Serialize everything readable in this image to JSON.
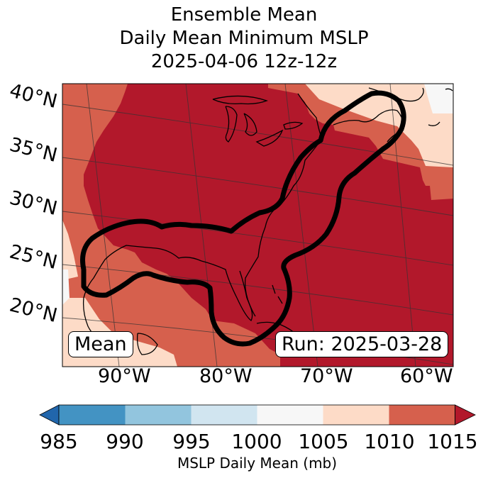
{
  "title": {
    "line1": "Ensemble Mean",
    "line2": "Daily Mean Minimum MSLP",
    "line3": "2025-04-06 12z-12z"
  },
  "map": {
    "latitude_labels": [
      "40°N",
      "35°N",
      "30°N",
      "25°N",
      "20°N"
    ],
    "longitude_labels": [
      "90°W",
      "80°W",
      "70°W",
      "60°W"
    ],
    "mean_label": "Mean",
    "run_label": "Run: 2025-03-28",
    "colors": {
      "lt_985": "#2166ac",
      "985_990": "#4393c3",
      "990_995": "#92c5de",
      "995_1000": "#d1e5f0",
      "1000_1005": "#f7f7f7",
      "1005_1010": "#fddbc7",
      "1010_1015": "#d6604d",
      "gt_1015": "#b2182b"
    }
  },
  "colorbar": {
    "ticks": [
      "985",
      "990",
      "995",
      "1000",
      "1005",
      "1010",
      "1015"
    ],
    "label": "MSLP Daily Mean (mb)",
    "colors": [
      "#4393c3",
      "#92c5de",
      "#d1e5f0",
      "#f7f7f7",
      "#fddbc7",
      "#d6604d"
    ],
    "under_color": "#2166ac",
    "over_color": "#b2182b"
  }
}
